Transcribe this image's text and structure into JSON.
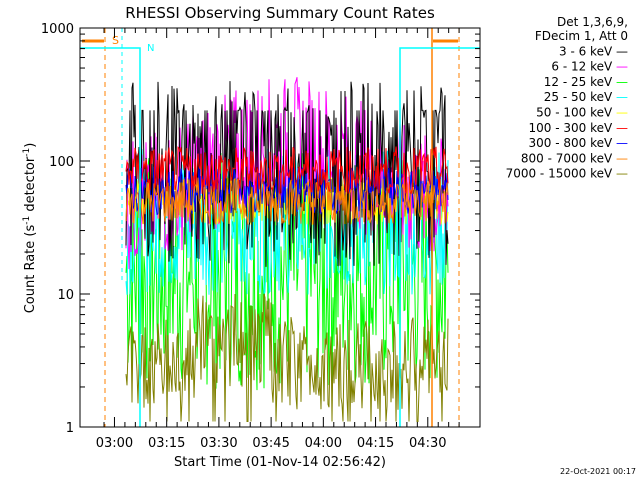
{
  "chart_data": {
    "type": "line",
    "title": "RHESSI Observing Summary Count Rates",
    "xlabel": "Start Time (01-Nov-14 02:56:42)",
    "ylabel_main": "Count Rate (s",
    "ylabel_sup1": "-1",
    "ylabel_mid": " detector",
    "ylabel_sup2": "-1",
    "ylabel_end": ")",
    "yscale": "log",
    "ylim": [
      1,
      1000
    ],
    "xlim_minutes": [
      -3.3,
      35.0
    ],
    "x_ticks": [
      {
        "label": "03:00",
        "m": 0
      },
      {
        "label": "03:15",
        "m": 15
      },
      {
        "label": "03:30",
        "m": 30
      },
      {
        "label": "03:45",
        "m": 45
      },
      {
        "label": "04:00",
        "m": 60
      },
      {
        "label": "04:15",
        "m": 75
      },
      {
        "label": "04:30",
        "m": 90
      }
    ],
    "y_ticks": [
      {
        "label": "1",
        "v": 1
      },
      {
        "label": "10",
        "v": 10
      },
      {
        "label": "100",
        "v": 100
      },
      {
        "label": "1000",
        "v": 1000
      }
    ],
    "legend_header": [
      "Det 1,3,6,9,",
      "FDecim 1, Att 0"
    ],
    "series": [
      {
        "name": "3 - 6 keV",
        "color": "#000000",
        "level": 80
      },
      {
        "name": "6 - 12 keV",
        "color": "#ff00ff",
        "level": 70
      },
      {
        "name": "12 - 25 keV",
        "color": "#00ff00",
        "level": 15
      },
      {
        "name": "25 - 50 keV",
        "color": "#00ffff",
        "level": 35
      },
      {
        "name": "50 - 100 keV",
        "color": "#ffff00",
        "level": 50
      },
      {
        "name": "100 - 300 keV",
        "color": "#ff0000",
        "level": 85
      },
      {
        "name": "300 - 800 keV",
        "color": "#0000ff",
        "level": 60
      },
      {
        "name": "800 - 7000 keV",
        "color": "#ff8000",
        "level": 50
      },
      {
        "name": "7000 - 15000 keV",
        "color": "#808000",
        "level": 3
      }
    ],
    "markers": [
      {
        "label": "S",
        "color": "#ff8000"
      },
      {
        "label": "N",
        "color": "#00ffff"
      }
    ],
    "timestamp": "22-Oct-2021 00:17"
  }
}
